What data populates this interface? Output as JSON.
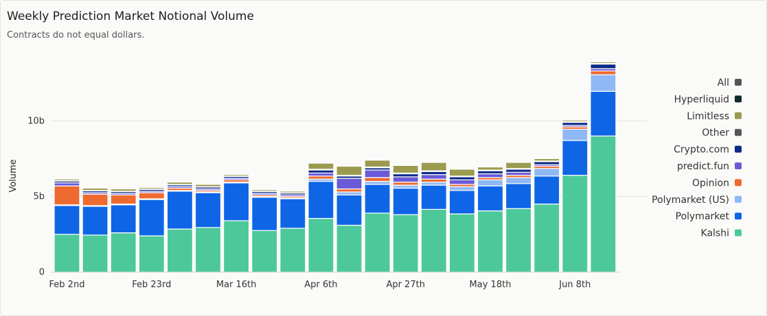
{
  "chart_data": {
    "type": "bar",
    "stacked": true,
    "title": "Weekly Prediction Market Notional Volume",
    "subtitle": "Contracts do not equal dollars.",
    "ylabel": "Volume",
    "xlabel": "",
    "ylim": [
      0,
      14
    ],
    "yticks": [
      {
        "value": 0,
        "label": "0"
      },
      {
        "value": 5,
        "label": "5b"
      },
      {
        "value": 10,
        "label": "10b"
      }
    ],
    "grid": true,
    "legend_position": "right",
    "x_tick_labels": [
      {
        "index": 0,
        "label": "Feb 2nd"
      },
      {
        "index": 3,
        "label": "Feb 23rd"
      },
      {
        "index": 6,
        "label": "Mar 16th"
      },
      {
        "index": 9,
        "label": "Apr 6th"
      },
      {
        "index": 12,
        "label": "Apr 27th"
      },
      {
        "index": 15,
        "label": "May 18th"
      },
      {
        "index": 18,
        "label": "Jun 8th"
      }
    ],
    "categories": [
      "Feb 2nd",
      "Feb 9th",
      "Feb 16th",
      "Feb 23rd",
      "Mar 2nd",
      "Mar 9th",
      "Mar 16th",
      "Mar 23rd",
      "Mar 30th",
      "Apr 6th",
      "Apr 13th",
      "Apr 20th",
      "Apr 27th",
      "May 4th",
      "May 11th",
      "May 18th",
      "May 25th",
      "Jun 1st",
      "Jun 8th",
      "Jun 15th"
    ],
    "legend": [
      "All",
      "Hyperliquid",
      "Limitless",
      "Other",
      "Crypto.com",
      "predict.fun",
      "Opinion",
      "Polymarket (US)",
      "Polymarket",
      "Kalshi"
    ],
    "legend_colors": [
      "#555555",
      "#0f2a2e",
      "#9b9a4f",
      "#555555",
      "#0b2b86",
      "#6a5ad8",
      "#ee6a2f",
      "#8fb9f5",
      "#0e66e6",
      "#4dc89a"
    ],
    "series": [
      {
        "name": "Kalshi",
        "color": "#4dc89a",
        "values": [
          2.5,
          2.45,
          2.6,
          2.4,
          2.85,
          2.95,
          3.4,
          2.75,
          2.9,
          3.55,
          3.1,
          3.9,
          3.8,
          4.15,
          3.85,
          4.05,
          4.2,
          4.5,
          6.4,
          9.0
        ]
      },
      {
        "name": "Polymarket",
        "color": "#0e66e6",
        "values": [
          1.9,
          1.9,
          1.85,
          2.4,
          2.5,
          2.3,
          2.5,
          2.2,
          1.95,
          2.45,
          2.0,
          1.9,
          1.75,
          1.6,
          1.55,
          1.65,
          1.65,
          1.85,
          2.3,
          2.95
        ]
      },
      {
        "name": "Polymarket (US)",
        "color": "#8fb9f5",
        "values": [
          0.05,
          0.05,
          0.05,
          0.05,
          0.05,
          0.05,
          0.05,
          0.05,
          0.05,
          0.15,
          0.2,
          0.2,
          0.2,
          0.2,
          0.25,
          0.4,
          0.4,
          0.5,
          0.75,
          1.1
        ]
      },
      {
        "name": "Opinion",
        "color": "#ee6a2f",
        "values": [
          1.25,
          0.75,
          0.6,
          0.4,
          0.15,
          0.1,
          0.15,
          0.1,
          0.1,
          0.2,
          0.2,
          0.25,
          0.2,
          0.2,
          0.15,
          0.15,
          0.15,
          0.15,
          0.15,
          0.25
        ]
      },
      {
        "name": "predict.fun",
        "color": "#6a5ad8",
        "values": [
          0.2,
          0.1,
          0.1,
          0.1,
          0.1,
          0.1,
          0.1,
          0.1,
          0.1,
          0.2,
          0.7,
          0.5,
          0.35,
          0.3,
          0.3,
          0.25,
          0.2,
          0.1,
          0.1,
          0.15
        ]
      },
      {
        "name": "Crypto.com",
        "color": "#0b2b86",
        "values": [
          0.12,
          0.12,
          0.12,
          0.12,
          0.12,
          0.12,
          0.12,
          0.12,
          0.12,
          0.2,
          0.15,
          0.15,
          0.2,
          0.2,
          0.2,
          0.2,
          0.2,
          0.2,
          0.2,
          0.3
        ]
      },
      {
        "name": "Other",
        "color": "#555555",
        "values": [
          0.03,
          0.03,
          0.03,
          0.03,
          0.03,
          0.03,
          0.03,
          0.03,
          0.03,
          0.05,
          0.05,
          0.05,
          0.05,
          0.05,
          0.05,
          0.05,
          0.05,
          0.05,
          0.05,
          0.05
        ]
      },
      {
        "name": "Limitless",
        "color": "#9b9a4f",
        "values": [
          0.1,
          0.15,
          0.15,
          0.1,
          0.15,
          0.15,
          0.1,
          0.1,
          0.1,
          0.4,
          0.6,
          0.45,
          0.5,
          0.55,
          0.45,
          0.2,
          0.4,
          0.15,
          0.1,
          0.1
        ]
      },
      {
        "name": "Hyperliquid",
        "color": "#0f2a2e",
        "values": [
          0,
          0,
          0,
          0,
          0,
          0,
          0,
          0,
          0,
          0,
          0,
          0,
          0,
          0,
          0,
          0,
          0,
          0,
          0,
          0
        ]
      },
      {
        "name": "All",
        "color": "#555555",
        "values": [
          0,
          0,
          0,
          0,
          0,
          0,
          0,
          0,
          0,
          0,
          0,
          0,
          0,
          0,
          0,
          0,
          0,
          0,
          0,
          0
        ]
      }
    ]
  }
}
